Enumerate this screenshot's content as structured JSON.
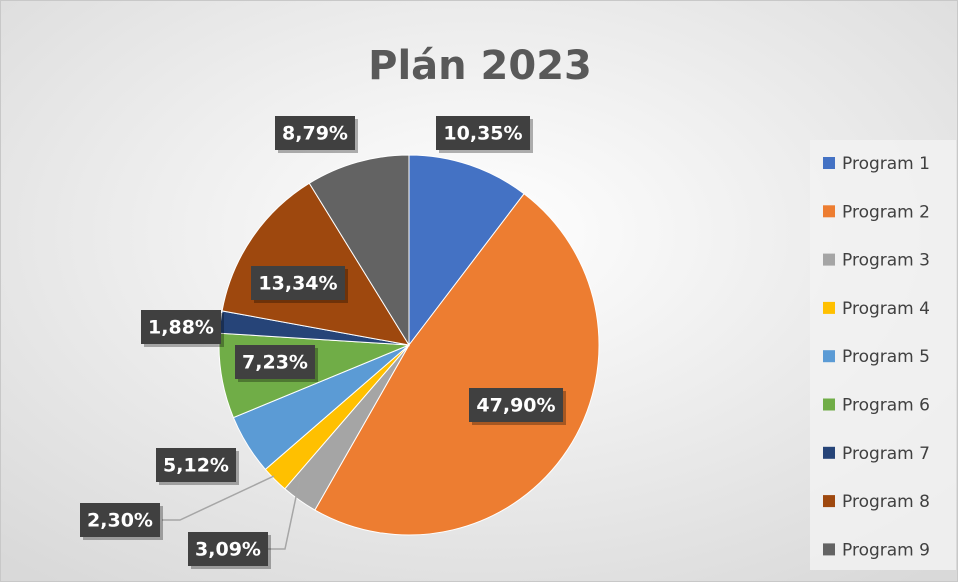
{
  "chart_data": {
    "type": "pie",
    "title": "Plán 2023",
    "categories": [
      "Program 1",
      "Program 2",
      "Program 3",
      "Program 4",
      "Program 5",
      "Program 6",
      "Program 7",
      "Program 8",
      "Program 9"
    ],
    "values": [
      10.35,
      47.9,
      3.09,
      2.3,
      5.12,
      7.23,
      1.88,
      13.34,
      8.79
    ],
    "value_labels": [
      "10,35%",
      "47,90%",
      "3,09%",
      "2,30%",
      "5,12%",
      "7,23%",
      "1,88%",
      "13,34%",
      "8,79%"
    ],
    "colors": [
      "#4472c4",
      "#ed7d31",
      "#a5a5a5",
      "#ffc000",
      "#5b9bd5",
      "#70ad47",
      "#264478",
      "#9e480e",
      "#636363"
    ],
    "legend": "right"
  }
}
